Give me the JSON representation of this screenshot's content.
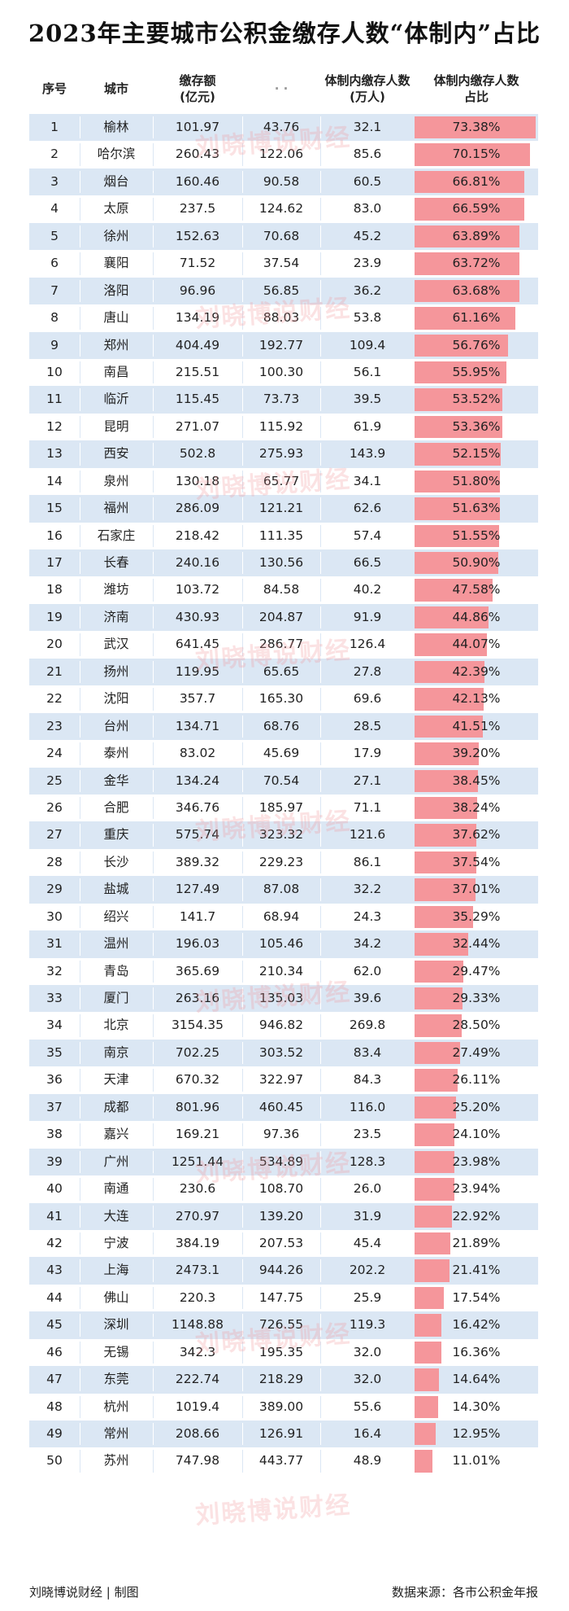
{
  "title": "2023年主要城市公积金缴存人数“体制内”占比",
  "headers": {
    "index": "序号",
    "city": "城市",
    "amount": "缴存额\n(亿元)",
    "hidden": "·  ·",
    "people": "体制内缴存人数\n(万人)",
    "ratio": "体制内缴存人数\n占比"
  },
  "watermark": "刘晓博说财经",
  "rows": [
    {
      "no": "1",
      "city": "榆林",
      "amount": "101.97",
      "col4": "43.76",
      "people": "32.1",
      "ratio": "73.38%",
      "r": 73.38
    },
    {
      "no": "2",
      "city": "哈尔滨",
      "amount": "260.43",
      "col4": "122.06",
      "people": "85.6",
      "ratio": "70.15%",
      "r": 70.15
    },
    {
      "no": "3",
      "city": "烟台",
      "amount": "160.46",
      "col4": "90.58",
      "people": "60.5",
      "ratio": "66.81%",
      "r": 66.81
    },
    {
      "no": "4",
      "city": "太原",
      "amount": "237.5",
      "col4": "124.62",
      "people": "83.0",
      "ratio": "66.59%",
      "r": 66.59
    },
    {
      "no": "5",
      "city": "徐州",
      "amount": "152.63",
      "col4": "70.68",
      "people": "45.2",
      "ratio": "63.89%",
      "r": 63.89
    },
    {
      "no": "6",
      "city": "襄阳",
      "amount": "71.52",
      "col4": "37.54",
      "people": "23.9",
      "ratio": "63.72%",
      "r": 63.72
    },
    {
      "no": "7",
      "city": "洛阳",
      "amount": "96.96",
      "col4": "56.85",
      "people": "36.2",
      "ratio": "63.68%",
      "r": 63.68
    },
    {
      "no": "8",
      "city": "唐山",
      "amount": "134.19",
      "col4": "88.03",
      "people": "53.8",
      "ratio": "61.16%",
      "r": 61.16
    },
    {
      "no": "9",
      "city": "郑州",
      "amount": "404.49",
      "col4": "192.77",
      "people": "109.4",
      "ratio": "56.76%",
      "r": 56.76
    },
    {
      "no": "10",
      "city": "南昌",
      "amount": "215.51",
      "col4": "100.30",
      "people": "56.1",
      "ratio": "55.95%",
      "r": 55.95
    },
    {
      "no": "11",
      "city": "临沂",
      "amount": "115.45",
      "col4": "73.73",
      "people": "39.5",
      "ratio": "53.52%",
      "r": 53.52
    },
    {
      "no": "12",
      "city": "昆明",
      "amount": "271.07",
      "col4": "115.92",
      "people": "61.9",
      "ratio": "53.36%",
      "r": 53.36
    },
    {
      "no": "13",
      "city": "西安",
      "amount": "502.8",
      "col4": "275.93",
      "people": "143.9",
      "ratio": "52.15%",
      "r": 52.15
    },
    {
      "no": "14",
      "city": "泉州",
      "amount": "130.18",
      "col4": "65.77",
      "people": "34.1",
      "ratio": "51.80%",
      "r": 51.8
    },
    {
      "no": "15",
      "city": "福州",
      "amount": "286.09",
      "col4": "121.21",
      "people": "62.6",
      "ratio": "51.63%",
      "r": 51.63
    },
    {
      "no": "16",
      "city": "石家庄",
      "amount": "218.42",
      "col4": "111.35",
      "people": "57.4",
      "ratio": "51.55%",
      "r": 51.55
    },
    {
      "no": "17",
      "city": "长春",
      "amount": "240.16",
      "col4": "130.56",
      "people": "66.5",
      "ratio": "50.90%",
      "r": 50.9
    },
    {
      "no": "18",
      "city": "潍坊",
      "amount": "103.72",
      "col4": "84.58",
      "people": "40.2",
      "ratio": "47.58%",
      "r": 47.58
    },
    {
      "no": "19",
      "city": "济南",
      "amount": "430.93",
      "col4": "204.87",
      "people": "91.9",
      "ratio": "44.86%",
      "r": 44.86
    },
    {
      "no": "20",
      "city": "武汉",
      "amount": "641.45",
      "col4": "286.77",
      "people": "126.4",
      "ratio": "44.07%",
      "r": 44.07
    },
    {
      "no": "21",
      "city": "扬州",
      "amount": "119.95",
      "col4": "65.65",
      "people": "27.8",
      "ratio": "42.39%",
      "r": 42.39
    },
    {
      "no": "22",
      "city": "沈阳",
      "amount": "357.7",
      "col4": "165.30",
      "people": "69.6",
      "ratio": "42.13%",
      "r": 42.13
    },
    {
      "no": "23",
      "city": "台州",
      "amount": "134.71",
      "col4": "68.76",
      "people": "28.5",
      "ratio": "41.51%",
      "r": 41.51
    },
    {
      "no": "24",
      "city": "泰州",
      "amount": "83.02",
      "col4": "45.69",
      "people": "17.9",
      "ratio": "39.20%",
      "r": 39.2
    },
    {
      "no": "25",
      "city": "金华",
      "amount": "134.24",
      "col4": "70.54",
      "people": "27.1",
      "ratio": "38.45%",
      "r": 38.45
    },
    {
      "no": "26",
      "city": "合肥",
      "amount": "346.76",
      "col4": "185.97",
      "people": "71.1",
      "ratio": "38.24%",
      "r": 38.24
    },
    {
      "no": "27",
      "city": "重庆",
      "amount": "575.74",
      "col4": "323.32",
      "people": "121.6",
      "ratio": "37.62%",
      "r": 37.62
    },
    {
      "no": "28",
      "city": "长沙",
      "amount": "389.32",
      "col4": "229.23",
      "people": "86.1",
      "ratio": "37.54%",
      "r": 37.54
    },
    {
      "no": "29",
      "city": "盐城",
      "amount": "127.49",
      "col4": "87.08",
      "people": "32.2",
      "ratio": "37.01%",
      "r": 37.01
    },
    {
      "no": "30",
      "city": "绍兴",
      "amount": "141.7",
      "col4": "68.94",
      "people": "24.3",
      "ratio": "35.29%",
      "r": 35.29
    },
    {
      "no": "31",
      "city": "温州",
      "amount": "196.03",
      "col4": "105.46",
      "people": "34.2",
      "ratio": "32.44%",
      "r": 32.44
    },
    {
      "no": "32",
      "city": "青岛",
      "amount": "365.69",
      "col4": "210.34",
      "people": "62.0",
      "ratio": "29.47%",
      "r": 29.47
    },
    {
      "no": "33",
      "city": "厦门",
      "amount": "263.16",
      "col4": "135.03",
      "people": "39.6",
      "ratio": "29.33%",
      "r": 29.33
    },
    {
      "no": "34",
      "city": "北京",
      "amount": "3154.35",
      "col4": "946.82",
      "people": "269.8",
      "ratio": "28.50%",
      "r": 28.5
    },
    {
      "no": "35",
      "city": "南京",
      "amount": "702.25",
      "col4": "303.52",
      "people": "83.4",
      "ratio": "27.49%",
      "r": 27.49
    },
    {
      "no": "36",
      "city": "天津",
      "amount": "670.32",
      "col4": "322.97",
      "people": "84.3",
      "ratio": "26.11%",
      "r": 26.11
    },
    {
      "no": "37",
      "city": "成都",
      "amount": "801.96",
      "col4": "460.45",
      "people": "116.0",
      "ratio": "25.20%",
      "r": 25.2
    },
    {
      "no": "38",
      "city": "嘉兴",
      "amount": "169.21",
      "col4": "97.36",
      "people": "23.5",
      "ratio": "24.10%",
      "r": 24.1
    },
    {
      "no": "39",
      "city": "广州",
      "amount": "1251.44",
      "col4": "534.89",
      "people": "128.3",
      "ratio": "23.98%",
      "r": 23.98
    },
    {
      "no": "40",
      "city": "南通",
      "amount": "230.6",
      "col4": "108.70",
      "people": "26.0",
      "ratio": "23.94%",
      "r": 23.94
    },
    {
      "no": "41",
      "city": "大连",
      "amount": "270.97",
      "col4": "139.20",
      "people": "31.9",
      "ratio": "22.92%",
      "r": 22.92
    },
    {
      "no": "42",
      "city": "宁波",
      "amount": "384.19",
      "col4": "207.53",
      "people": "45.4",
      "ratio": "21.89%",
      "r": 21.89
    },
    {
      "no": "43",
      "city": "上海",
      "amount": "2473.1",
      "col4": "944.26",
      "people": "202.2",
      "ratio": "21.41%",
      "r": 21.41
    },
    {
      "no": "44",
      "city": "佛山",
      "amount": "220.3",
      "col4": "147.75",
      "people": "25.9",
      "ratio": "17.54%",
      "r": 17.54
    },
    {
      "no": "45",
      "city": "深圳",
      "amount": "1148.88",
      "col4": "726.55",
      "people": "119.3",
      "ratio": "16.42%",
      "r": 16.42
    },
    {
      "no": "46",
      "city": "无锡",
      "amount": "342.3",
      "col4": "195.35",
      "people": "32.0",
      "ratio": "16.36%",
      "r": 16.36
    },
    {
      "no": "47",
      "city": "东莞",
      "amount": "222.74",
      "col4": "218.29",
      "people": "32.0",
      "ratio": "14.64%",
      "r": 14.64
    },
    {
      "no": "48",
      "city": "杭州",
      "amount": "1019.4",
      "col4": "389.00",
      "people": "55.6",
      "ratio": "14.30%",
      "r": 14.3
    },
    {
      "no": "49",
      "city": "常州",
      "amount": "208.66",
      "col4": "126.91",
      "people": "16.4",
      "ratio": "12.95%",
      "r": 12.95
    },
    {
      "no": "50",
      "city": "苏州",
      "amount": "747.98",
      "col4": "443.77",
      "people": "48.9",
      "ratio": "11.01%",
      "r": 11.01
    }
  ],
  "footer": {
    "left": "刘晓博说财经 | 制图",
    "right": "数据来源：各市公积金年报"
  },
  "colors": {
    "row_stripe": "#dbe7f4",
    "bar": "#f5969b"
  }
}
